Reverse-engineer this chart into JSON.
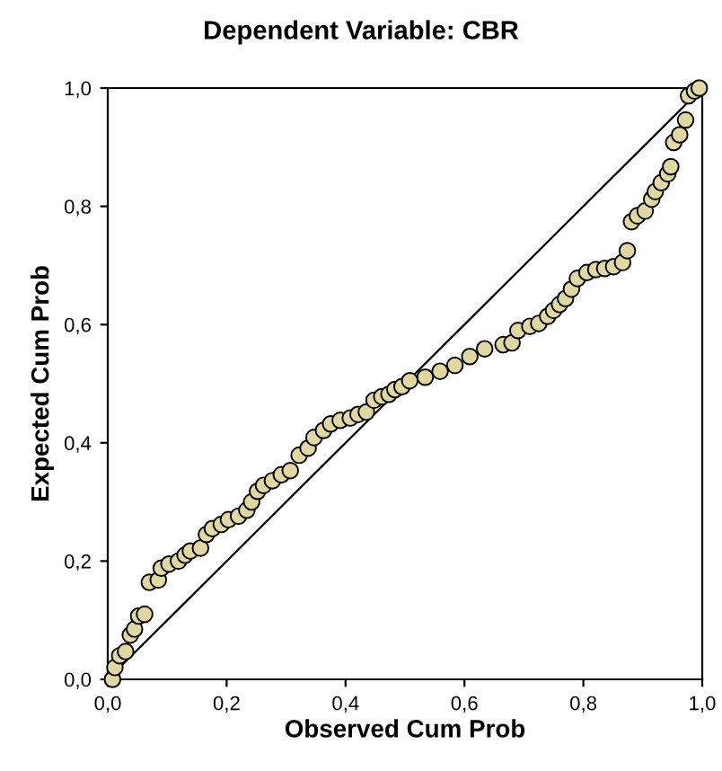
{
  "chart_data": {
    "type": "scatter",
    "title": "Dependent Variable: CBR",
    "xlabel": "Observed Cum Prob",
    "ylabel": "Expected Cum Prob",
    "xlim": [
      0,
      1
    ],
    "ylim": [
      0,
      1
    ],
    "xticks": [
      {
        "value": 0,
        "label": "0,0"
      },
      {
        "value": 0.2,
        "label": "0,2"
      },
      {
        "value": 0.4,
        "label": "0,4"
      },
      {
        "value": 0.6,
        "label": "0,6"
      },
      {
        "value": 0.8,
        "label": "0,8"
      },
      {
        "value": 1,
        "label": "1,0"
      }
    ],
    "yticks": [
      {
        "value": 0,
        "label": "0,0"
      },
      {
        "value": 0.2,
        "label": "0,2"
      },
      {
        "value": 0.4,
        "label": "0,4"
      },
      {
        "value": 0.6,
        "label": "0,6"
      },
      {
        "value": 0.8,
        "label": "0,8"
      },
      {
        "value": 1,
        "label": "1,0"
      }
    ],
    "grid": false,
    "marker": "circle",
    "series": [
      {
        "type": "line",
        "marker": "none",
        "color": "#000000",
        "x": [
          0,
          1
        ],
        "values": [
          0,
          1
        ]
      },
      {
        "color": "#e0d8a0",
        "x": [
          0.008,
          0.012,
          0.02,
          0.03,
          0.038,
          0.045,
          0.052,
          0.062,
          0.07,
          0.085,
          0.09,
          0.103,
          0.119,
          0.13,
          0.139,
          0.156,
          0.166,
          0.176,
          0.191,
          0.203,
          0.22,
          0.234,
          0.242,
          0.252,
          0.262,
          0.277,
          0.292,
          0.307,
          0.322,
          0.337,
          0.347,
          0.363,
          0.375,
          0.391,
          0.408,
          0.421,
          0.435,
          0.448,
          0.461,
          0.473,
          0.483,
          0.495,
          0.508,
          0.534,
          0.559,
          0.584,
          0.609,
          0.634,
          0.665,
          0.68,
          0.69,
          0.71,
          0.725,
          0.74,
          0.75,
          0.76,
          0.77,
          0.78,
          0.79,
          0.806,
          0.821,
          0.836,
          0.851,
          0.866,
          0.874,
          0.881,
          0.891,
          0.904,
          0.915,
          0.921,
          0.931,
          0.942,
          0.947,
          0.952,
          0.962,
          0.972,
          0.977,
          0.987,
          0.995
        ],
        "values": [
          0.0,
          0.02,
          0.04,
          0.047,
          0.075,
          0.085,
          0.107,
          0.11,
          0.164,
          0.168,
          0.188,
          0.195,
          0.2,
          0.21,
          0.217,
          0.222,
          0.245,
          0.255,
          0.262,
          0.27,
          0.276,
          0.286,
          0.3,
          0.318,
          0.328,
          0.336,
          0.346,
          0.353,
          0.379,
          0.391,
          0.409,
          0.421,
          0.432,
          0.438,
          0.442,
          0.448,
          0.452,
          0.472,
          0.478,
          0.482,
          0.49,
          0.495,
          0.505,
          0.511,
          0.521,
          0.531,
          0.546,
          0.559,
          0.566,
          0.569,
          0.59,
          0.597,
          0.602,
          0.614,
          0.624,
          0.634,
          0.644,
          0.66,
          0.678,
          0.688,
          0.693,
          0.695,
          0.698,
          0.705,
          0.725,
          0.774,
          0.784,
          0.792,
          0.812,
          0.825,
          0.84,
          0.855,
          0.867,
          0.908,
          0.921,
          0.946,
          0.987,
          0.995,
          1.0
        ]
      }
    ]
  }
}
